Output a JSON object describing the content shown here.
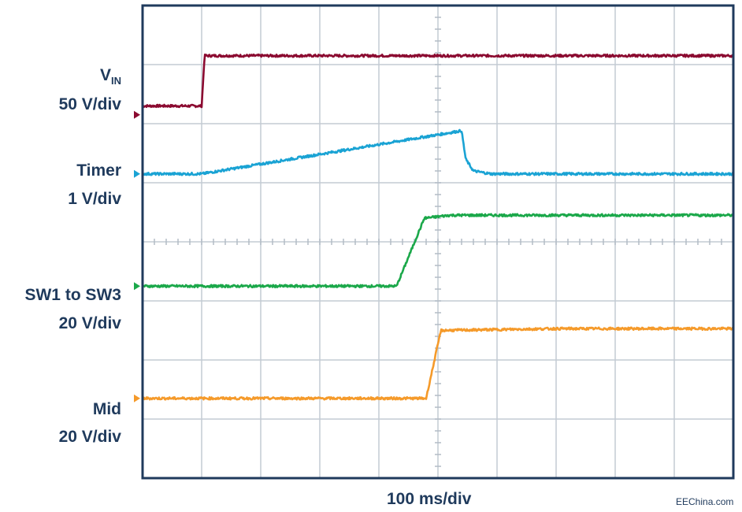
{
  "chart_data": {
    "type": "line",
    "xlabel": "100 ms/div",
    "divisions": {
      "x": 10,
      "y": 8
    },
    "grid": true,
    "series": [
      {
        "id": "vin",
        "name_main": "V",
        "name_sub": "IN",
        "scale": "50 V/div",
        "color": "#8b0a30",
        "ground_div": 1.0,
        "points": [
          [
            0,
            0.15
          ],
          [
            1.0,
            0.15
          ],
          [
            1.05,
            1.0
          ],
          [
            10,
            1.0
          ]
        ]
      },
      {
        "id": "timer",
        "name": "Timer",
        "scale": "1 V/div",
        "color": "#1aa3d4",
        "ground_div": 0.0,
        "points": [
          [
            0,
            0.0
          ],
          [
            1.0,
            0.0
          ],
          [
            5.4,
            0.73
          ],
          [
            5.47,
            0.25
          ],
          [
            5.6,
            0.05
          ],
          [
            5.9,
            0.0
          ],
          [
            10,
            0.0
          ]
        ]
      },
      {
        "id": "sw",
        "name": "SW1 to SW3",
        "scale": "20 V/div",
        "color": "#1ba84a",
        "ground_div": 0.0,
        "points": [
          [
            0,
            0.0
          ],
          [
            4.3,
            0.0
          ],
          [
            4.77,
            1.15
          ],
          [
            5.2,
            1.2
          ],
          [
            10,
            1.2
          ]
        ]
      },
      {
        "id": "mid",
        "name": "Mid",
        "scale": "20 V/div",
        "color": "#f59a2a",
        "ground_div": 0.0,
        "points": [
          [
            0,
            0.0
          ],
          [
            4.8,
            0.0
          ],
          [
            5.05,
            1.15
          ],
          [
            7.0,
            1.18
          ],
          [
            10,
            1.18
          ]
        ]
      }
    ]
  },
  "labels": {
    "vin_main": "V",
    "vin_sub": "IN",
    "vin_scale": "50 V/div",
    "timer_name": "Timer",
    "timer_scale": "1 V/div",
    "sw_name": "SW1 to SW3",
    "sw_scale": "20 V/div",
    "mid_name": "Mid",
    "mid_scale": "20 V/div"
  },
  "credit": "EEChina.com"
}
